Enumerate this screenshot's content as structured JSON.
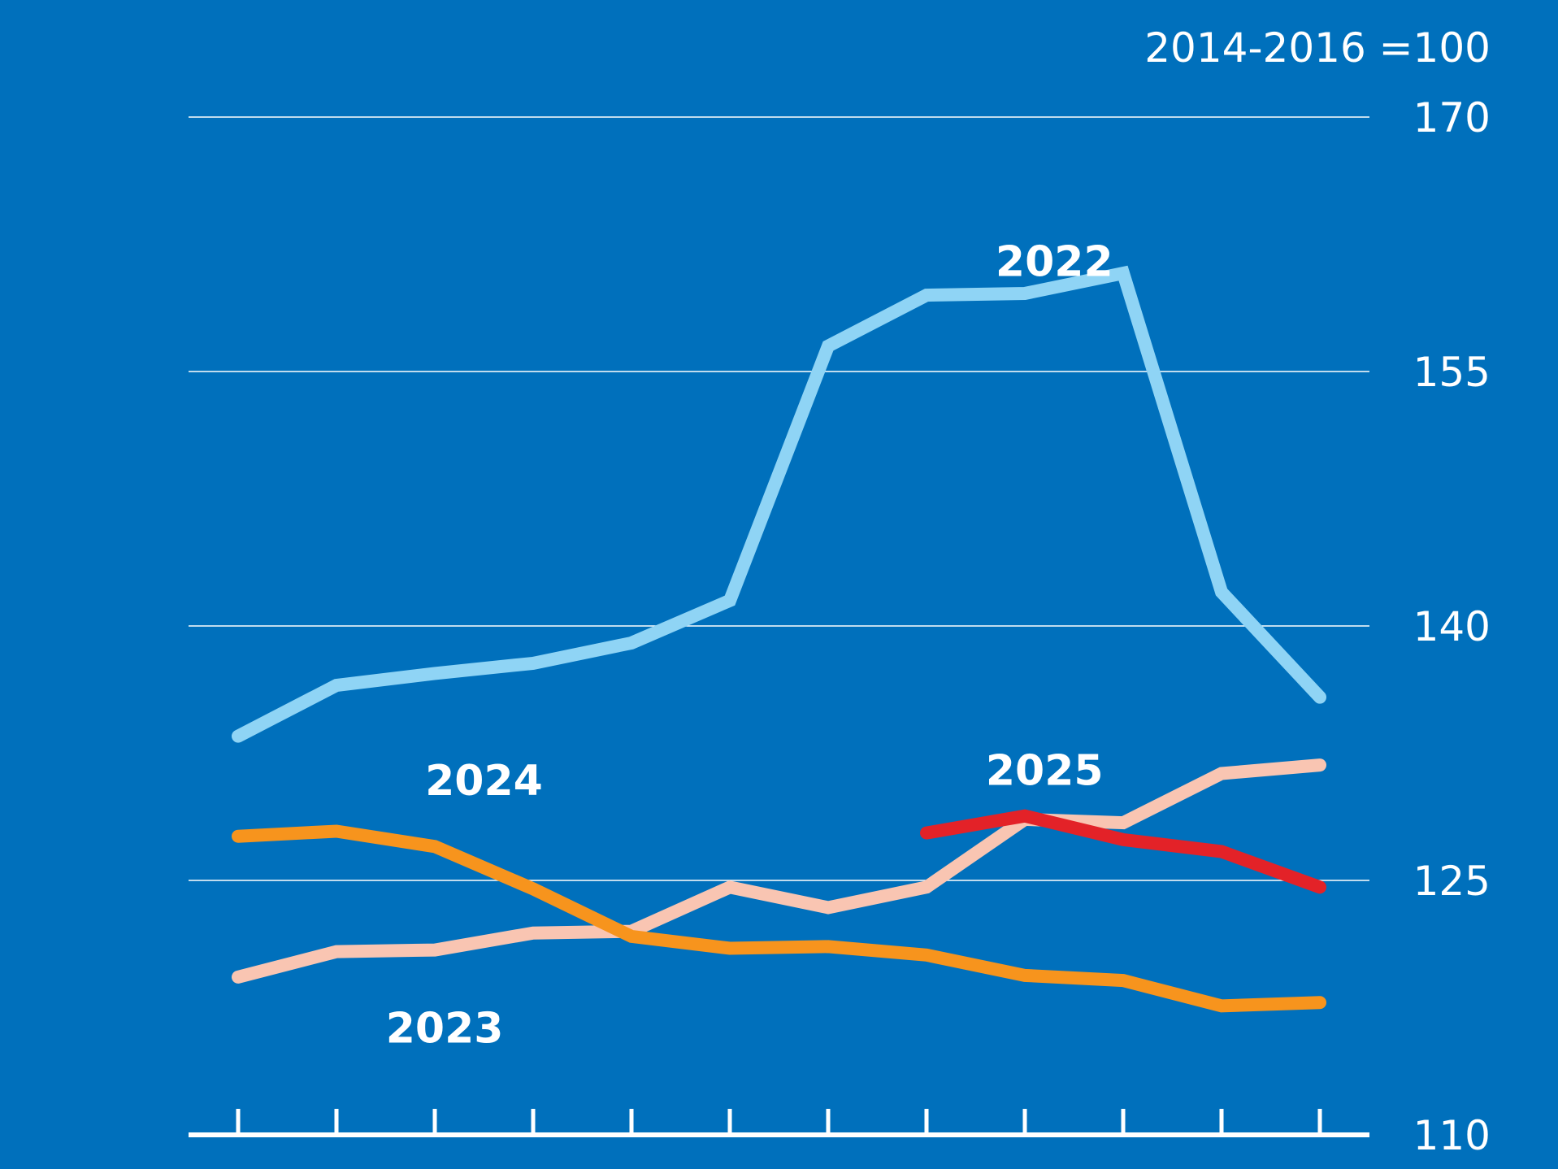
{
  "chart_data": {
    "type": "line",
    "unit_note": "2014-2016 =100",
    "ylim": [
      110,
      170
    ],
    "y_ticks": [
      110,
      125,
      140,
      155,
      170
    ],
    "y_tick_labels": [
      "110",
      "125",
      "140",
      "155",
      "170"
    ],
    "x_count": 12,
    "grid": true,
    "colors": {
      "background": "#0070bc",
      "grid": "#ffffff"
    },
    "series": [
      {
        "name": "2022",
        "color": "#8fd4f5",
        "values": [
          133.5,
          136.5,
          137.2,
          137.8,
          139.0,
          141.5,
          156.5,
          159.5,
          159.6,
          160.8,
          142.0,
          135.8
        ],
        "label_x": 8.3,
        "label_y": 161.5
      },
      {
        "name": "2023",
        "color": "#f9c5b2",
        "values": [
          119.3,
          120.8,
          120.9,
          121.9,
          122.0,
          124.6,
          123.4,
          124.6,
          128.6,
          128.4,
          131.3,
          131.8
        ],
        "label_x": 2.1,
        "label_y": 116.3
      },
      {
        "name": "2024",
        "color": "#f7941d",
        "values": [
          127.6,
          127.9,
          127.0,
          124.5,
          121.7,
          121.0,
          121.1,
          120.6,
          119.4,
          119.1,
          117.6,
          117.8
        ],
        "label_x": 2.5,
        "label_y": 130.9
      },
      {
        "name": "2025",
        "color": "#e32228",
        "values": [
          null,
          null,
          null,
          null,
          null,
          null,
          null,
          127.8,
          128.8,
          127.4,
          126.7,
          124.6
        ],
        "label_x": 8.2,
        "label_y": 131.5
      }
    ]
  }
}
